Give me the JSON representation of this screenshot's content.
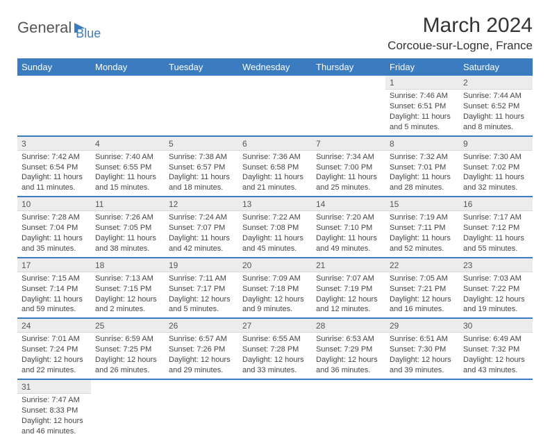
{
  "logo": {
    "text1": "General",
    "text2": "Blue"
  },
  "title": "March 2024",
  "location": "Corcoue-sur-Logne, France",
  "colors": {
    "header_bg": "#3b7bbf",
    "header_fg": "#ffffff",
    "daynum_bg": "#ececec",
    "row_border": "#3b7bbf",
    "text": "#444444"
  },
  "weekdays": [
    "Sunday",
    "Monday",
    "Tuesday",
    "Wednesday",
    "Thursday",
    "Friday",
    "Saturday"
  ],
  "weeks": [
    [
      null,
      null,
      null,
      null,
      null,
      {
        "n": "1",
        "sr": "7:46 AM",
        "ss": "6:51 PM",
        "dl": "11 hours and 5 minutes."
      },
      {
        "n": "2",
        "sr": "7:44 AM",
        "ss": "6:52 PM",
        "dl": "11 hours and 8 minutes."
      }
    ],
    [
      {
        "n": "3",
        "sr": "7:42 AM",
        "ss": "6:54 PM",
        "dl": "11 hours and 11 minutes."
      },
      {
        "n": "4",
        "sr": "7:40 AM",
        "ss": "6:55 PM",
        "dl": "11 hours and 15 minutes."
      },
      {
        "n": "5",
        "sr": "7:38 AM",
        "ss": "6:57 PM",
        "dl": "11 hours and 18 minutes."
      },
      {
        "n": "6",
        "sr": "7:36 AM",
        "ss": "6:58 PM",
        "dl": "11 hours and 21 minutes."
      },
      {
        "n": "7",
        "sr": "7:34 AM",
        "ss": "7:00 PM",
        "dl": "11 hours and 25 minutes."
      },
      {
        "n": "8",
        "sr": "7:32 AM",
        "ss": "7:01 PM",
        "dl": "11 hours and 28 minutes."
      },
      {
        "n": "9",
        "sr": "7:30 AM",
        "ss": "7:02 PM",
        "dl": "11 hours and 32 minutes."
      }
    ],
    [
      {
        "n": "10",
        "sr": "7:28 AM",
        "ss": "7:04 PM",
        "dl": "11 hours and 35 minutes."
      },
      {
        "n": "11",
        "sr": "7:26 AM",
        "ss": "7:05 PM",
        "dl": "11 hours and 38 minutes."
      },
      {
        "n": "12",
        "sr": "7:24 AM",
        "ss": "7:07 PM",
        "dl": "11 hours and 42 minutes."
      },
      {
        "n": "13",
        "sr": "7:22 AM",
        "ss": "7:08 PM",
        "dl": "11 hours and 45 minutes."
      },
      {
        "n": "14",
        "sr": "7:20 AM",
        "ss": "7:10 PM",
        "dl": "11 hours and 49 minutes."
      },
      {
        "n": "15",
        "sr": "7:19 AM",
        "ss": "7:11 PM",
        "dl": "11 hours and 52 minutes."
      },
      {
        "n": "16",
        "sr": "7:17 AM",
        "ss": "7:12 PM",
        "dl": "11 hours and 55 minutes."
      }
    ],
    [
      {
        "n": "17",
        "sr": "7:15 AM",
        "ss": "7:14 PM",
        "dl": "11 hours and 59 minutes."
      },
      {
        "n": "18",
        "sr": "7:13 AM",
        "ss": "7:15 PM",
        "dl": "12 hours and 2 minutes."
      },
      {
        "n": "19",
        "sr": "7:11 AM",
        "ss": "7:17 PM",
        "dl": "12 hours and 5 minutes."
      },
      {
        "n": "20",
        "sr": "7:09 AM",
        "ss": "7:18 PM",
        "dl": "12 hours and 9 minutes."
      },
      {
        "n": "21",
        "sr": "7:07 AM",
        "ss": "7:19 PM",
        "dl": "12 hours and 12 minutes."
      },
      {
        "n": "22",
        "sr": "7:05 AM",
        "ss": "7:21 PM",
        "dl": "12 hours and 16 minutes."
      },
      {
        "n": "23",
        "sr": "7:03 AM",
        "ss": "7:22 PM",
        "dl": "12 hours and 19 minutes."
      }
    ],
    [
      {
        "n": "24",
        "sr": "7:01 AM",
        "ss": "7:24 PM",
        "dl": "12 hours and 22 minutes."
      },
      {
        "n": "25",
        "sr": "6:59 AM",
        "ss": "7:25 PM",
        "dl": "12 hours and 26 minutes."
      },
      {
        "n": "26",
        "sr": "6:57 AM",
        "ss": "7:26 PM",
        "dl": "12 hours and 29 minutes."
      },
      {
        "n": "27",
        "sr": "6:55 AM",
        "ss": "7:28 PM",
        "dl": "12 hours and 33 minutes."
      },
      {
        "n": "28",
        "sr": "6:53 AM",
        "ss": "7:29 PM",
        "dl": "12 hours and 36 minutes."
      },
      {
        "n": "29",
        "sr": "6:51 AM",
        "ss": "7:30 PM",
        "dl": "12 hours and 39 minutes."
      },
      {
        "n": "30",
        "sr": "6:49 AM",
        "ss": "7:32 PM",
        "dl": "12 hours and 43 minutes."
      }
    ],
    [
      {
        "n": "31",
        "sr": "7:47 AM",
        "ss": "8:33 PM",
        "dl": "12 hours and 46 minutes."
      },
      null,
      null,
      null,
      null,
      null,
      null
    ]
  ],
  "labels": {
    "sunrise": "Sunrise: ",
    "sunset": "Sunset: ",
    "daylight": "Daylight: "
  }
}
